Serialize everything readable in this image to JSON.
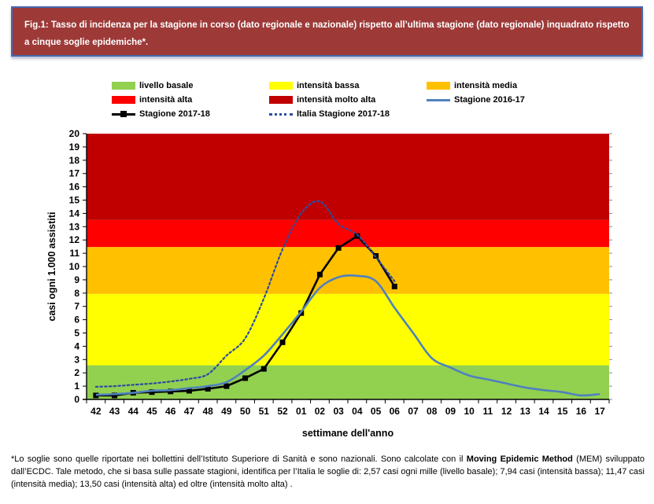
{
  "figure": {
    "title": "Fig.1: Tasso di incidenza per la stagione in corso (dato regionale e nazionale) rispetto all’ultima stagione (dato regionale) inquadrato rispetto a cinque soglie epidemiche*.",
    "box_fill": "#9D3A38",
    "box_border": "#4467B0"
  },
  "legend": {
    "items": [
      {
        "swatch": "rect",
        "color": "#92D050",
        "label": "livello basale"
      },
      {
        "swatch": "rect",
        "color": "#FFFF00",
        "label": "intensità bassa"
      },
      {
        "swatch": "rect",
        "color": "#FFC000",
        "label": "intensità media"
      },
      {
        "swatch": "rect",
        "color": "#FF0000",
        "label": "intensità alta"
      },
      {
        "swatch": "rect",
        "color": "#C00000",
        "label": "intensità molto alta"
      },
      {
        "swatch": "line",
        "color": "#4F81BD",
        "label": "Stagione 2016-17"
      },
      {
        "swatch": "line-marker",
        "color": "#000000",
        "label": "Stagione 2017-18"
      },
      {
        "swatch": "dotted",
        "color": "#2C4D9E",
        "label": "Italia Stagione 2017-18"
      }
    ]
  },
  "chart_data": {
    "type": "line",
    "title": "",
    "xlabel": "settimane dell'anno",
    "ylabel": "casi ogni 1.000 assistiti",
    "ylim": [
      0,
      20
    ],
    "ytick_step": 1,
    "grid": false,
    "legend_position": "top",
    "categories": [
      "42",
      "43",
      "44",
      "45",
      "46",
      "47",
      "48",
      "49",
      "50",
      "51",
      "52",
      "01",
      "02",
      "03",
      "04",
      "05",
      "06",
      "07",
      "08",
      "09",
      "10",
      "11",
      "12",
      "13",
      "14",
      "15",
      "16",
      "17"
    ],
    "bands": [
      {
        "label": "livello basale",
        "from": 0,
        "to": 2.57,
        "color": "#92D050"
      },
      {
        "label": "intensità bassa",
        "from": 2.57,
        "to": 7.94,
        "color": "#FFFF00"
      },
      {
        "label": "intensità media",
        "from": 7.94,
        "to": 11.47,
        "color": "#FFC000"
      },
      {
        "label": "intensità alta",
        "from": 11.47,
        "to": 13.5,
        "color": "#FF0000"
      },
      {
        "label": "intensità molto alta",
        "from": 13.5,
        "to": 20,
        "color": "#C00000"
      }
    ],
    "series": [
      {
        "name": "Stagione 2017-18",
        "color": "#000000",
        "style": "solid",
        "marker": "square",
        "smooth": false,
        "values": [
          0.3,
          0.3,
          0.5,
          0.55,
          0.6,
          0.65,
          0.8,
          1.0,
          1.6,
          2.3,
          4.3,
          6.5,
          9.4,
          11.4,
          12.3,
          10.8,
          8.5
        ]
      },
      {
        "name": "Italia Stagione 2017-18",
        "color": "#2C4D9E",
        "style": "dotted",
        "marker": "none",
        "smooth": true,
        "values": [
          0.95,
          1.0,
          1.1,
          1.2,
          1.35,
          1.55,
          1.9,
          3.3,
          4.6,
          7.6,
          11.3,
          14.0,
          14.9,
          13.2,
          12.4,
          10.7,
          8.9
        ]
      },
      {
        "name": "Stagione 2016-17",
        "color": "#4F81BD",
        "style": "solid",
        "marker": "none",
        "smooth": true,
        "values": [
          0.35,
          0.4,
          0.5,
          0.65,
          0.7,
          0.85,
          1.0,
          1.3,
          2.2,
          3.3,
          4.9,
          6.6,
          8.4,
          9.2,
          9.3,
          8.9,
          6.9,
          5.0,
          3.1,
          2.4,
          1.8,
          1.5,
          1.2,
          0.9,
          0.7,
          0.55,
          0.3,
          0.4
        ]
      }
    ]
  },
  "footnote": {
    "part1": "*Lo soglie sono quelle riportate nei bollettini dell’Istituto Superiore di Sanità e sono nazionali. Sono calcolate con il ",
    "bold": "Moving Epidemic Method",
    "part2": " (MEM) sviluppato dall’ECDC. Tale metodo, che si basa sulle passate stagioni, identifica per l’Italia le soglie di: 2,57 casi ogni mille (livello basale); 7,94 casi (intensità bassa); 11,47 casi (intensità media); 13,50 casi (intensità alta) ed oltre (intensità molto alta) ."
  }
}
